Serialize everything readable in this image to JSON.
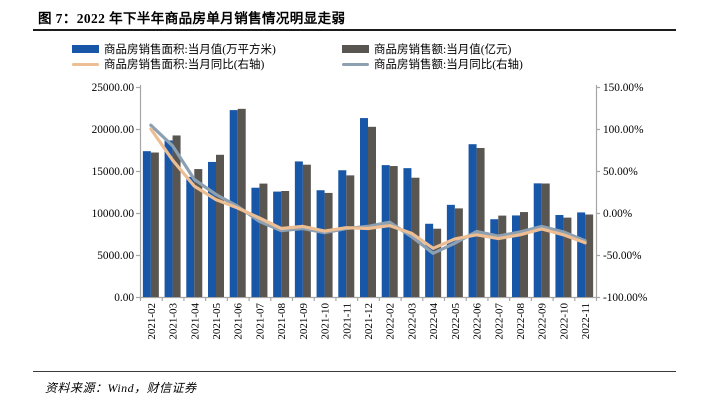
{
  "figure": {
    "title": "图 7：2022 年下半年商品房单月销售情况明显走弱",
    "source": "资料来源：Wind，财信证券"
  },
  "chart_data": {
    "type": "bar+line",
    "title": "2022 年下半年商品房单月销售情况明显走弱",
    "legend_position": "top",
    "grid": false,
    "categories": [
      "2021-02",
      "2021-03",
      "2021-04",
      "2021-05",
      "2021-06",
      "2021-07",
      "2021-08",
      "2021-09",
      "2021-10",
      "2021-11",
      "2021-12",
      "2022-02",
      "2022-03",
      "2022-04",
      "2022-05",
      "2022-06",
      "2022-07",
      "2022-08",
      "2022-09",
      "2022-10",
      "2022-11"
    ],
    "series": [
      {
        "name": "商品房销售面积:当月值(万平方米)",
        "type": "bar",
        "axis": "left",
        "color": "#1857A8",
        "values": [
          17360,
          18640,
          14300,
          16080,
          22250,
          13010,
          12550,
          16140,
          12710,
          15090,
          21300,
          15700,
          15340,
          8720,
          10970,
          18190,
          9260,
          9710,
          13530,
          9760,
          10070
        ]
      },
      {
        "name": "商品房销售额:当月值(亿元)",
        "type": "bar",
        "axis": "left",
        "color": "#595551",
        "values": [
          17200,
          19230,
          15230,
          16930,
          22400,
          13500,
          12620,
          15750,
          12390,
          14480,
          20260,
          15590,
          14200,
          8130,
          10550,
          17740,
          9690,
          10110,
          13510,
          9450,
          9820
        ]
      },
      {
        "name": "商品房销售面积:当月同比(右轴)",
        "type": "line",
        "axis": "right",
        "color": "#EDBE93",
        "values": [
          100,
          63,
          32,
          16,
          6,
          -6,
          -18.5,
          -16,
          -21.5,
          -17.5,
          -18.5,
          -15,
          -24,
          -42,
          -31,
          -26,
          -30.5,
          -26,
          -19,
          -26,
          -35.5
        ]
      },
      {
        "name": "商品房销售额:当月同比(右轴)",
        "type": "line",
        "axis": "right",
        "color": "#8CA0B2",
        "values": [
          104.5,
          80,
          40,
          22,
          8,
          -10,
          -21,
          -18.5,
          -23.5,
          -18.5,
          -16,
          -11,
          -28,
          -48,
          -36,
          -22,
          -27.5,
          -22.5,
          -16,
          -22.5,
          -33
        ]
      }
    ],
    "left_axis": {
      "min": 0,
      "max": 25000,
      "step": 5000,
      "tick_labels": [
        "25000.00",
        "20000.00",
        "15000.00",
        "10000.00",
        "5000.00",
        "0.00"
      ]
    },
    "right_axis": {
      "min": -100,
      "max": 150,
      "step": 50,
      "tick_labels": [
        "150.00%",
        "100.00%",
        "50.00%",
        "0.00%",
        "-50.00%",
        "-100.00%"
      ]
    }
  },
  "style": {
    "axis_color": "#A6A6A6",
    "text_color": "#000000"
  }
}
